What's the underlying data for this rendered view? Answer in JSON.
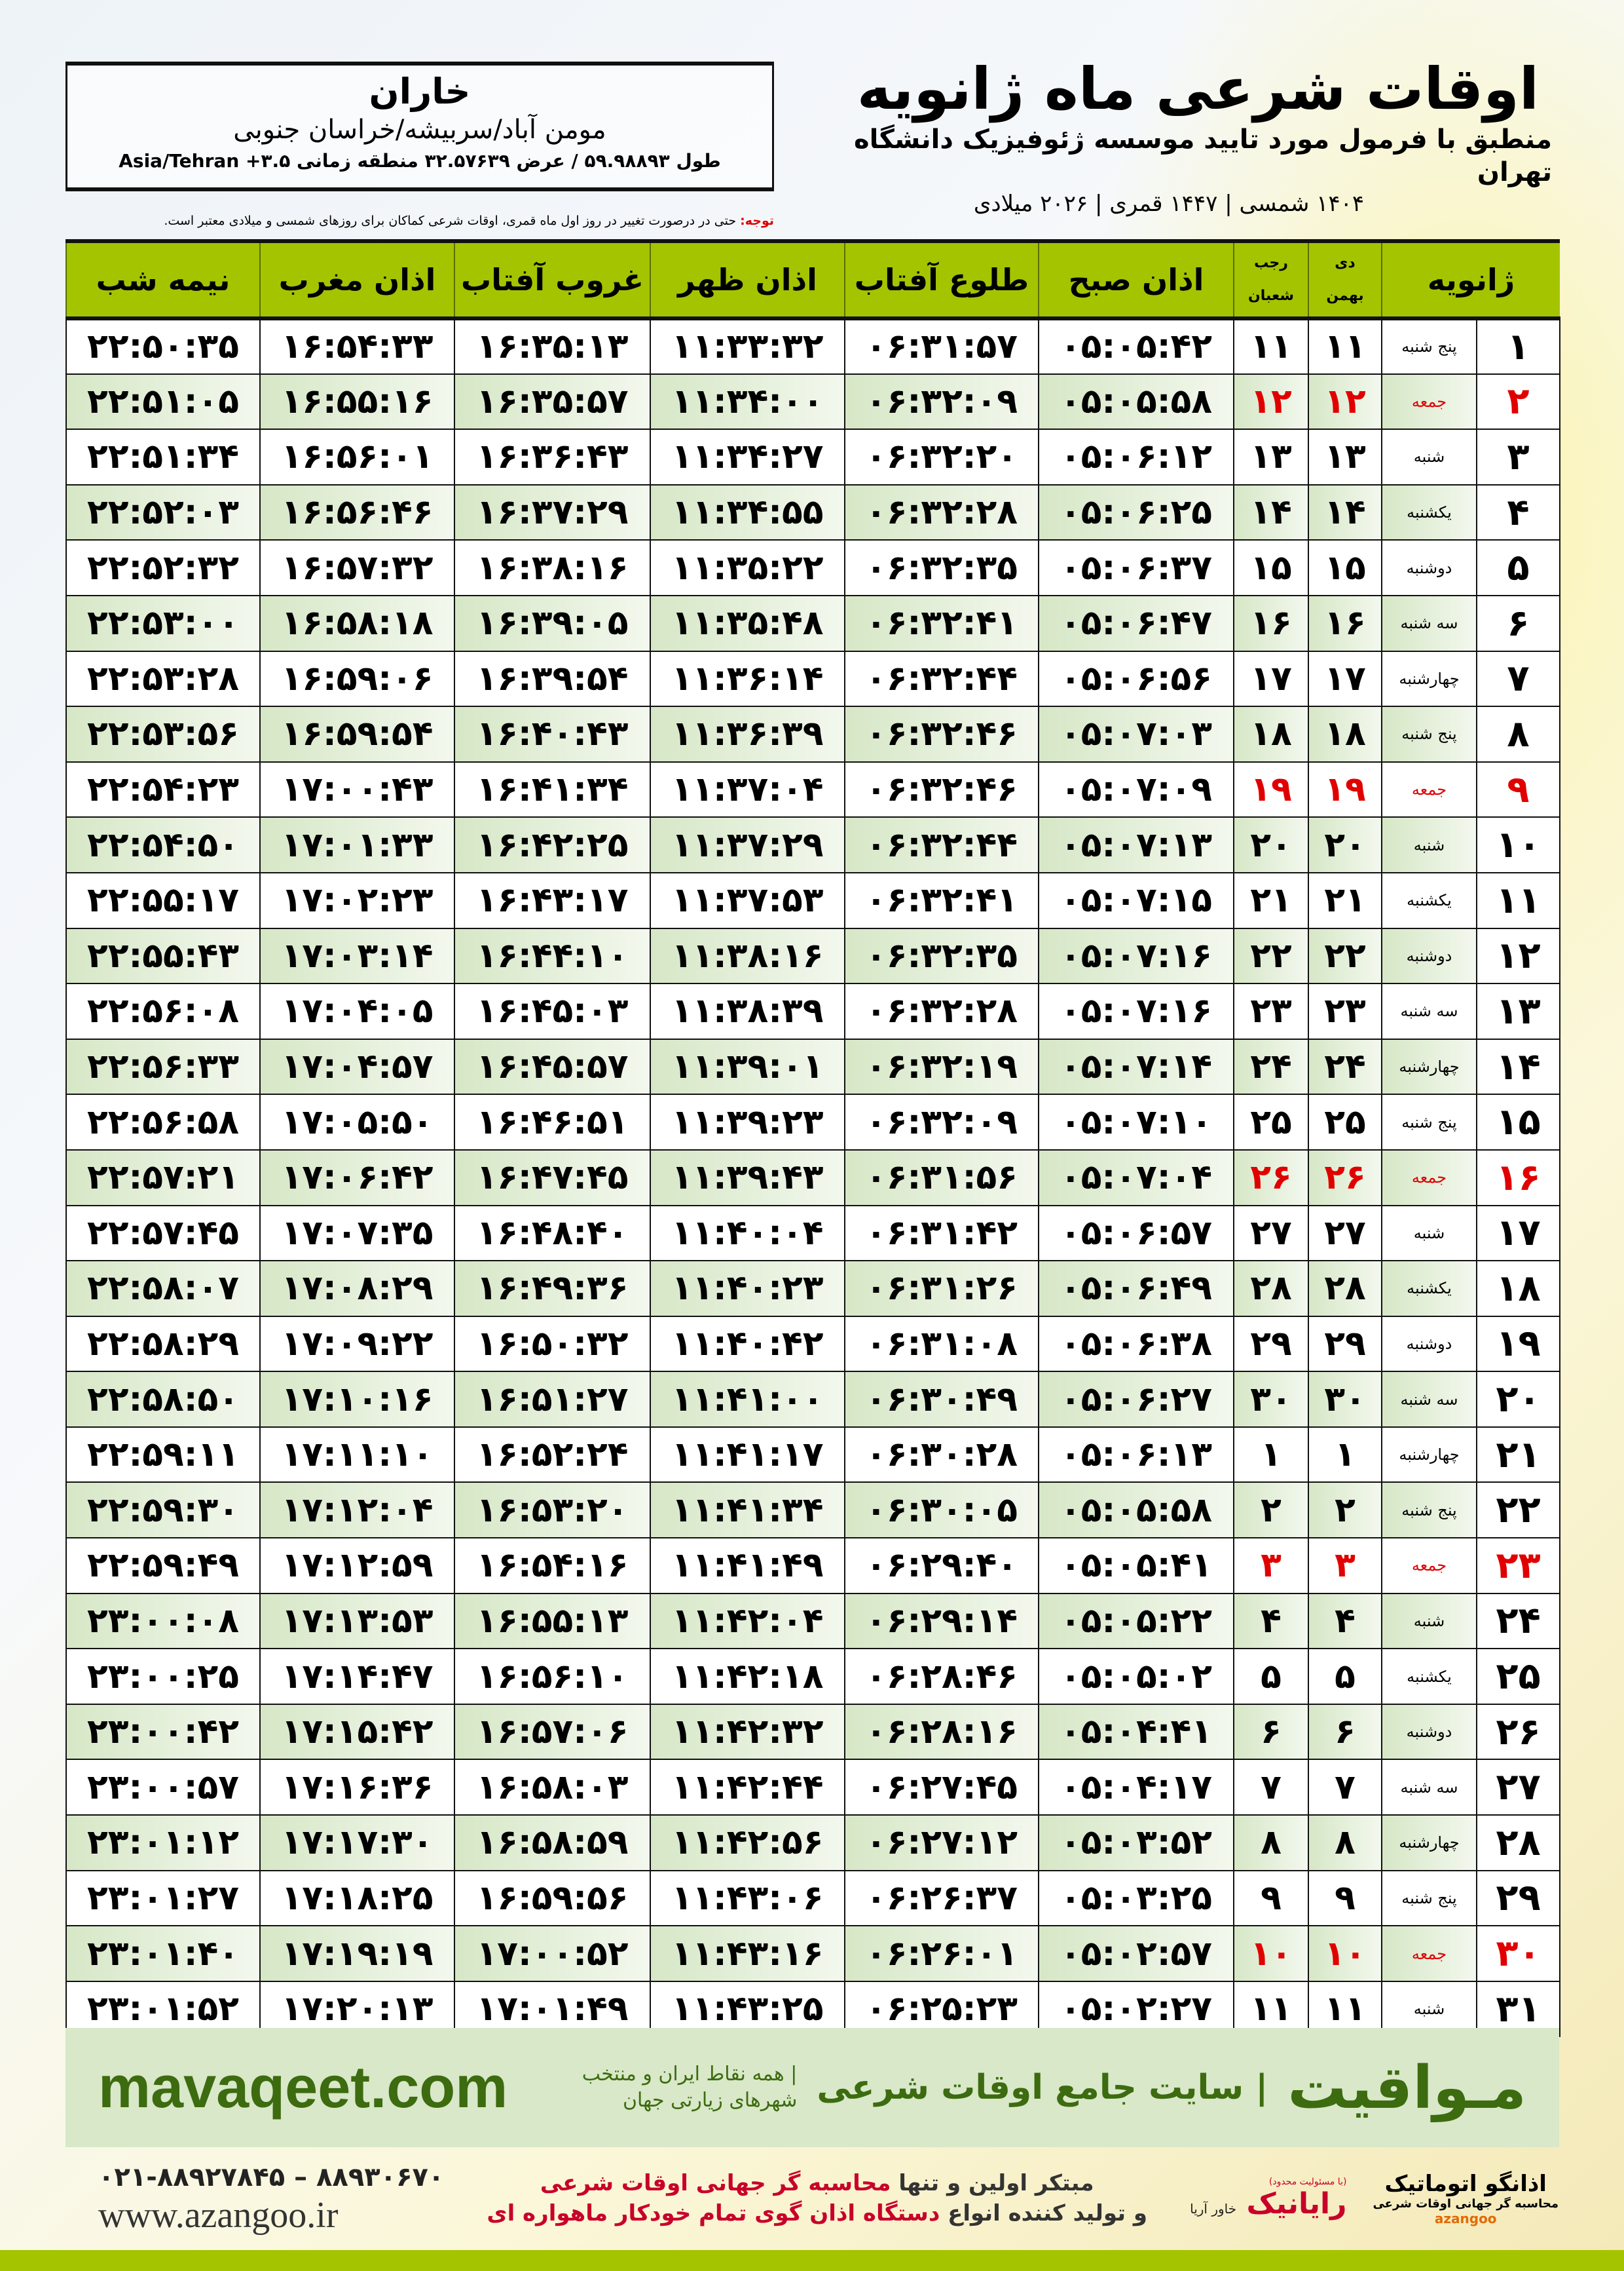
{
  "header": {
    "title": "اوقات شرعی ماه ژانویه",
    "subtitle": "منطبق با فرمول مورد تایید موسسه ژئوفیزیک دانشگاه تهران",
    "years": "۱۴۰۴ شمسی | ۱۴۴۷ قمری | ۲۰۲۶ میلادی"
  },
  "location": {
    "city": "خاران",
    "path": "مومن آباد/سربیشه/خراسان جنوبی",
    "coords": "طول ۵۹.۹۸۸۹۳ / عرض ۳۲.۵۷۶۳۹ منطقه زمانی ۳.۵+ Asia/Tehran"
  },
  "note": {
    "label": "توجه:",
    "text": " حتی در درصورت تغییر در روز اول ماه قمری، اوقات شرعی کماکان برای روزهای شمسی و میلادی معتبر است."
  },
  "columns": {
    "month": "ژانویه",
    "shamsi_top": "دی",
    "shamsi_bottom": "بهمن",
    "qamari_top": "رجب",
    "qamari_bottom": "شعبان",
    "fajr": "اذان صبح",
    "sunrise": "طلوع آفتاب",
    "dhuhr": "اذان ظهر",
    "sunset": "غروب آفتاب",
    "maghrib": "اذان مغرب",
    "midnight": "نیمه شب"
  },
  "colors": {
    "header_green": "#a4c400",
    "friday_red": "#e00000",
    "brand_green": "#3d6b10"
  },
  "rows": [
    [
      "۱",
      "پنج شنبه",
      "۱۱",
      "۱۱",
      "۰۵:۰۵:۴۲",
      "۰۶:۳۱:۵۷",
      "۱۱:۳۳:۳۲",
      "۱۶:۳۵:۱۳",
      "۱۶:۵۴:۳۳",
      "۲۲:۵۰:۳۵"
    ],
    [
      "۲",
      "جمعه",
      "۱۲",
      "۱۲",
      "۰۵:۰۵:۵۸",
      "۰۶:۳۲:۰۹",
      "۱۱:۳۴:۰۰",
      "۱۶:۳۵:۵۷",
      "۱۶:۵۵:۱۶",
      "۲۲:۵۱:۰۵"
    ],
    [
      "۳",
      "شنبه",
      "۱۳",
      "۱۳",
      "۰۵:۰۶:۱۲",
      "۰۶:۳۲:۲۰",
      "۱۱:۳۴:۲۷",
      "۱۶:۳۶:۴۳",
      "۱۶:۵۶:۰۱",
      "۲۲:۵۱:۳۴"
    ],
    [
      "۴",
      "یکشنبه",
      "۱۴",
      "۱۴",
      "۰۵:۰۶:۲۵",
      "۰۶:۳۲:۲۸",
      "۱۱:۳۴:۵۵",
      "۱۶:۳۷:۲۹",
      "۱۶:۵۶:۴۶",
      "۲۲:۵۲:۰۳"
    ],
    [
      "۵",
      "دوشنبه",
      "۱۵",
      "۱۵",
      "۰۵:۰۶:۳۷",
      "۰۶:۳۲:۳۵",
      "۱۱:۳۵:۲۲",
      "۱۶:۳۸:۱۶",
      "۱۶:۵۷:۳۲",
      "۲۲:۵۲:۳۲"
    ],
    [
      "۶",
      "سه شنبه",
      "۱۶",
      "۱۶",
      "۰۵:۰۶:۴۷",
      "۰۶:۳۲:۴۱",
      "۱۱:۳۵:۴۸",
      "۱۶:۳۹:۰۵",
      "۱۶:۵۸:۱۸",
      "۲۲:۵۳:۰۰"
    ],
    [
      "۷",
      "چهارشنبه",
      "۱۷",
      "۱۷",
      "۰۵:۰۶:۵۶",
      "۰۶:۳۲:۴۴",
      "۱۱:۳۶:۱۴",
      "۱۶:۳۹:۵۴",
      "۱۶:۵۹:۰۶",
      "۲۲:۵۳:۲۸"
    ],
    [
      "۸",
      "پنج شنبه",
      "۱۸",
      "۱۸",
      "۰۵:۰۷:۰۳",
      "۰۶:۳۲:۴۶",
      "۱۱:۳۶:۳۹",
      "۱۶:۴۰:۴۳",
      "۱۶:۵۹:۵۴",
      "۲۲:۵۳:۵۶"
    ],
    [
      "۹",
      "جمعه",
      "۱۹",
      "۱۹",
      "۰۵:۰۷:۰۹",
      "۰۶:۳۲:۴۶",
      "۱۱:۳۷:۰۴",
      "۱۶:۴۱:۳۴",
      "۱۷:۰۰:۴۳",
      "۲۲:۵۴:۲۳"
    ],
    [
      "۱۰",
      "شنبه",
      "۲۰",
      "۲۰",
      "۰۵:۰۷:۱۳",
      "۰۶:۳۲:۴۴",
      "۱۱:۳۷:۲۹",
      "۱۶:۴۲:۲۵",
      "۱۷:۰۱:۳۳",
      "۲۲:۵۴:۵۰"
    ],
    [
      "۱۱",
      "یکشنبه",
      "۲۱",
      "۲۱",
      "۰۵:۰۷:۱۵",
      "۰۶:۳۲:۴۱",
      "۱۱:۳۷:۵۳",
      "۱۶:۴۳:۱۷",
      "۱۷:۰۲:۲۳",
      "۲۲:۵۵:۱۷"
    ],
    [
      "۱۲",
      "دوشنبه",
      "۲۲",
      "۲۲",
      "۰۵:۰۷:۱۶",
      "۰۶:۳۲:۳۵",
      "۱۱:۳۸:۱۶",
      "۱۶:۴۴:۱۰",
      "۱۷:۰۳:۱۴",
      "۲۲:۵۵:۴۳"
    ],
    [
      "۱۳",
      "سه شنبه",
      "۲۳",
      "۲۳",
      "۰۵:۰۷:۱۶",
      "۰۶:۳۲:۲۸",
      "۱۱:۳۸:۳۹",
      "۱۶:۴۵:۰۳",
      "۱۷:۰۴:۰۵",
      "۲۲:۵۶:۰۸"
    ],
    [
      "۱۴",
      "چهارشنبه",
      "۲۴",
      "۲۴",
      "۰۵:۰۷:۱۴",
      "۰۶:۳۲:۱۹",
      "۱۱:۳۹:۰۱",
      "۱۶:۴۵:۵۷",
      "۱۷:۰۴:۵۷",
      "۲۲:۵۶:۳۳"
    ],
    [
      "۱۵",
      "پنج شنبه",
      "۲۵",
      "۲۵",
      "۰۵:۰۷:۱۰",
      "۰۶:۳۲:۰۹",
      "۱۱:۳۹:۲۳",
      "۱۶:۴۶:۵۱",
      "۱۷:۰۵:۵۰",
      "۲۲:۵۶:۵۸"
    ],
    [
      "۱۶",
      "جمعه",
      "۲۶",
      "۲۶",
      "۰۵:۰۷:۰۴",
      "۰۶:۳۱:۵۶",
      "۱۱:۳۹:۴۳",
      "۱۶:۴۷:۴۵",
      "۱۷:۰۶:۴۲",
      "۲۲:۵۷:۲۱"
    ],
    [
      "۱۷",
      "شنبه",
      "۲۷",
      "۲۷",
      "۰۵:۰۶:۵۷",
      "۰۶:۳۱:۴۲",
      "۱۱:۴۰:۰۴",
      "۱۶:۴۸:۴۰",
      "۱۷:۰۷:۳۵",
      "۲۲:۵۷:۴۵"
    ],
    [
      "۱۸",
      "یکشنبه",
      "۲۸",
      "۲۸",
      "۰۵:۰۶:۴۹",
      "۰۶:۳۱:۲۶",
      "۱۱:۴۰:۲۳",
      "۱۶:۴۹:۳۶",
      "۱۷:۰۸:۲۹",
      "۲۲:۵۸:۰۷"
    ],
    [
      "۱۹",
      "دوشنبه",
      "۲۹",
      "۲۹",
      "۰۵:۰۶:۳۸",
      "۰۶:۳۱:۰۸",
      "۱۱:۴۰:۴۲",
      "۱۶:۵۰:۳۲",
      "۱۷:۰۹:۲۲",
      "۲۲:۵۸:۲۹"
    ],
    [
      "۲۰",
      "سه شنبه",
      "۳۰",
      "۳۰",
      "۰۵:۰۶:۲۷",
      "۰۶:۳۰:۴۹",
      "۱۱:۴۱:۰۰",
      "۱۶:۵۱:۲۷",
      "۱۷:۱۰:۱۶",
      "۲۲:۵۸:۵۰"
    ],
    [
      "۲۱",
      "چهارشنبه",
      "۱",
      "۱",
      "۰۵:۰۶:۱۳",
      "۰۶:۳۰:۲۸",
      "۱۱:۴۱:۱۷",
      "۱۶:۵۲:۲۴",
      "۱۷:۱۱:۱۰",
      "۲۲:۵۹:۱۱"
    ],
    [
      "۲۲",
      "پنج شنبه",
      "۲",
      "۲",
      "۰۵:۰۵:۵۸",
      "۰۶:۳۰:۰۵",
      "۱۱:۴۱:۳۴",
      "۱۶:۵۳:۲۰",
      "۱۷:۱۲:۰۴",
      "۲۲:۵۹:۳۰"
    ],
    [
      "۲۳",
      "جمعه",
      "۳",
      "۳",
      "۰۵:۰۵:۴۱",
      "۰۶:۲۹:۴۰",
      "۱۱:۴۱:۴۹",
      "۱۶:۵۴:۱۶",
      "۱۷:۱۲:۵۹",
      "۲۲:۵۹:۴۹"
    ],
    [
      "۲۴",
      "شنبه",
      "۴",
      "۴",
      "۰۵:۰۵:۲۲",
      "۰۶:۲۹:۱۴",
      "۱۱:۴۲:۰۴",
      "۱۶:۵۵:۱۳",
      "۱۷:۱۳:۵۳",
      "۲۳:۰۰:۰۸"
    ],
    [
      "۲۵",
      "یکشنبه",
      "۵",
      "۵",
      "۰۵:۰۵:۰۲",
      "۰۶:۲۸:۴۶",
      "۱۱:۴۲:۱۸",
      "۱۶:۵۶:۱۰",
      "۱۷:۱۴:۴۷",
      "۲۳:۰۰:۲۵"
    ],
    [
      "۲۶",
      "دوشنبه",
      "۶",
      "۶",
      "۰۵:۰۴:۴۱",
      "۰۶:۲۸:۱۶",
      "۱۱:۴۲:۳۲",
      "۱۶:۵۷:۰۶",
      "۱۷:۱۵:۴۲",
      "۲۳:۰۰:۴۲"
    ],
    [
      "۲۷",
      "سه شنبه",
      "۷",
      "۷",
      "۰۵:۰۴:۱۷",
      "۰۶:۲۷:۴۵",
      "۱۱:۴۲:۴۴",
      "۱۶:۵۸:۰۳",
      "۱۷:۱۶:۳۶",
      "۲۳:۰۰:۵۷"
    ],
    [
      "۲۸",
      "چهارشنبه",
      "۸",
      "۸",
      "۰۵:۰۳:۵۲",
      "۰۶:۲۷:۱۲",
      "۱۱:۴۲:۵۶",
      "۱۶:۵۸:۵۹",
      "۱۷:۱۷:۳۰",
      "۲۳:۰۱:۱۲"
    ],
    [
      "۲۹",
      "پنج شنبه",
      "۹",
      "۹",
      "۰۵:۰۳:۲۵",
      "۰۶:۲۶:۳۷",
      "۱۱:۴۳:۰۶",
      "۱۶:۵۹:۵۶",
      "۱۷:۱۸:۲۵",
      "۲۳:۰۱:۲۷"
    ],
    [
      "۳۰",
      "جمعه",
      "۱۰",
      "۱۰",
      "۰۵:۰۲:۵۷",
      "۰۶:۲۶:۰۱",
      "۱۱:۴۳:۱۶",
      "۱۷:۰۰:۵۲",
      "۱۷:۱۹:۱۹",
      "۲۳:۰۱:۴۰"
    ],
    [
      "۳۱",
      "شنبه",
      "۱۱",
      "۱۱",
      "۰۵:۰۲:۲۷",
      "۰۶:۲۵:۲۳",
      "۱۱:۴۳:۲۵",
      "۱۷:۰۱:۴۹",
      "۱۷:۲۰:۱۳",
      "۲۳:۰۱:۵۲"
    ]
  ],
  "banner": {
    "brand": "مـواقیت",
    "tagline": "| سایت جامع اوقات شرعی",
    "tagline2": "| همه نقاط ایران و منتخب شهرهای زیارتی جهان",
    "site": "mavaqeet.com"
  },
  "footer": {
    "phone": "۰۲۱-۸۸۹۲۷۸۴۵ – ۸۸۹۳۰۶۷۰",
    "website": "www.azangoo.ir",
    "promo1a": "مبتکر اولین و تنها ",
    "promo1b": "محاسبه گر جهانی اوقات شرعی",
    "promo2a": "و تولید کننده انواع ",
    "promo2b": "دستگاه اذان گوی تمام خودکار ماهواره ای",
    "logo1_note": "(با مسئولیت محدود)",
    "logo1_a": "خاور آریا",
    "logo1_b": "رایانیک",
    "logo2_name": "اذانگو اتوماتیک",
    "logo2_sub": "محاسبه گر جهانی اوقات شرعی",
    "logo2_latin": "azangoo"
  }
}
